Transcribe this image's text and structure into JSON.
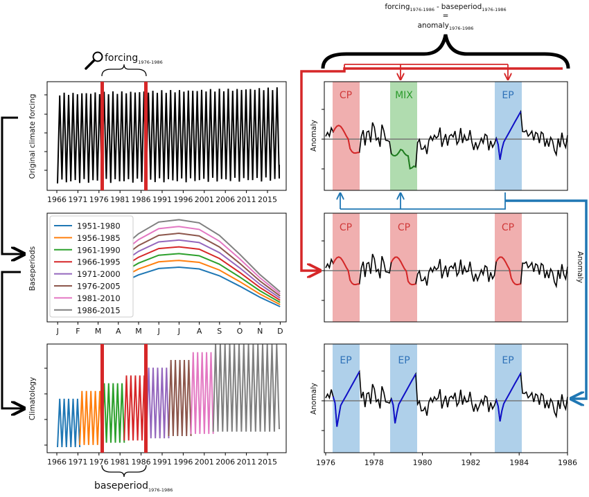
{
  "colors": {
    "cp": "#e36e6e",
    "cp_text": "#d03a3a",
    "mix": "#7cc47a",
    "mix_text": "#2b9a2b",
    "ep": "#7ab0dc",
    "ep_text": "#2f72b8",
    "arrow_red": "#d62728",
    "arrow_blue": "#1f77b4",
    "marker_red": "#d62728"
  },
  "left_panels": {
    "x_ticks": [
      "1966",
      "1971",
      "1976",
      "1981",
      "1986",
      "1991",
      "1996",
      "2001",
      "2006",
      "2011",
      "2015"
    ],
    "forcing_ylabel": "Original climate forcing",
    "baseperiods_ylabel": "Baseperiods",
    "climatology_ylabel": "Climatology",
    "months": [
      "J",
      "F",
      "M",
      "A",
      "M",
      "J",
      "J",
      "A",
      "S",
      "O",
      "N",
      "D"
    ],
    "forcing_annotation": "forcing",
    "forcing_annotation_sub": "1976-1986",
    "baseperiod_annotation": "baseperiod",
    "baseperiod_annotation_sub": "1976-1986",
    "magnifier_icon": "magnifier-icon"
  },
  "legend": [
    {
      "label": "1951-1980",
      "color": "#1f77b4"
    },
    {
      "label": "1956-1985",
      "color": "#ff7f0e"
    },
    {
      "label": "1961-1990",
      "color": "#2ca02c"
    },
    {
      "label": "1966-1995",
      "color": "#d62728"
    },
    {
      "label": "1971-2000",
      "color": "#9467bd"
    },
    {
      "label": "1976-2005",
      "color": "#8c564b"
    },
    {
      "label": "1981-2010",
      "color": "#e377c2"
    },
    {
      "label": "1986-2015",
      "color": "#7f7f7f"
    }
  ],
  "right_panels": {
    "ylabel": "Anomaly",
    "x_ticks": [
      "1976",
      "1978",
      "1980",
      "1982",
      "1984",
      "1986"
    ],
    "panel1_labels": [
      "CP",
      "MIX",
      "EP"
    ],
    "panel2_labels": [
      "CP",
      "CP",
      "CP"
    ],
    "panel3_labels": [
      "EP",
      "EP",
      "EP"
    ]
  },
  "equation": {
    "term1": "forcing",
    "term1_sub": "1976-1986",
    "minus": "-",
    "term2": "baseperiod",
    "term2_sub": "1976-1986",
    "equals": "=",
    "result": "anomaly",
    "result_sub": "1976-1986"
  }
}
